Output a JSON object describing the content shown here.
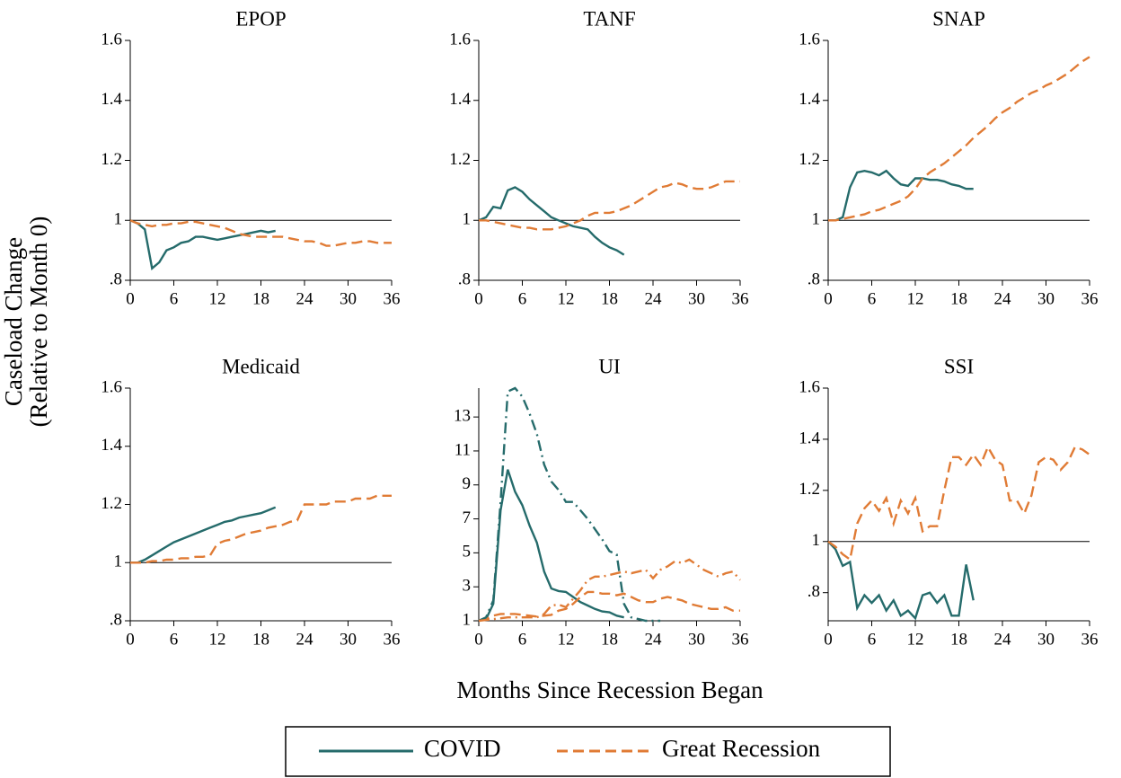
{
  "figure": {
    "ylabel": [
      "Caseload Change",
      "(Relative to Month 0)"
    ],
    "xlabel": "Months Since Recession Began"
  },
  "chart_data": [
    {
      "type": "line",
      "title": "EPOP",
      "x": [
        0,
        1,
        2,
        3,
        4,
        5,
        6,
        7,
        8,
        9,
        10,
        11,
        12,
        13,
        14,
        15,
        16,
        17,
        18,
        19,
        20,
        21,
        22,
        23,
        24,
        25,
        26,
        27,
        28,
        29,
        30,
        31,
        32,
        33,
        34,
        35,
        36
      ],
      "xlim": [
        0,
        36
      ],
      "xticks": [
        0,
        6,
        12,
        18,
        24,
        30,
        36
      ],
      "ylim": [
        0.8,
        1.6
      ],
      "yticks": [
        {
          "value": 0.8,
          "label": ".8"
        },
        1,
        1.2,
        1.4,
        1.6
      ],
      "hline": 1,
      "series": [
        {
          "name": "COVID",
          "color": "#256b6b",
          "dash": "solid",
          "values": [
            1,
            0.99,
            0.97,
            0.84,
            0.86,
            0.9,
            0.91,
            0.925,
            0.93,
            0.945,
            0.945,
            0.94,
            0.935,
            0.94,
            0.945,
            0.95,
            0.955,
            0.96,
            0.965,
            0.96,
            0.965,
            null,
            null,
            null,
            null,
            null,
            null,
            null,
            null,
            null,
            null,
            null,
            null,
            null,
            null,
            null,
            null
          ]
        },
        {
          "name": "Great Recession",
          "color": "#e07b35",
          "dash": "dashed",
          "values": [
            1,
            0.99,
            0.985,
            0.98,
            0.985,
            0.985,
            0.99,
            0.99,
            0.995,
            0.995,
            0.99,
            0.985,
            0.98,
            0.975,
            0.965,
            0.955,
            0.95,
            0.945,
            0.945,
            0.945,
            0.945,
            0.945,
            0.94,
            0.935,
            0.93,
            0.93,
            0.925,
            0.915,
            0.915,
            0.92,
            0.925,
            0.925,
            0.93,
            0.93,
            0.925,
            0.925,
            0.925
          ]
        }
      ]
    },
    {
      "type": "line",
      "title": "TANF",
      "x": [
        0,
        1,
        2,
        3,
        4,
        5,
        6,
        7,
        8,
        9,
        10,
        11,
        12,
        13,
        14,
        15,
        16,
        17,
        18,
        19,
        20,
        21,
        22,
        23,
        24,
        25,
        26,
        27,
        28,
        29,
        30,
        31,
        32,
        33,
        34,
        35,
        36
      ],
      "xlim": [
        0,
        36
      ],
      "xticks": [
        0,
        6,
        12,
        18,
        24,
        30,
        36
      ],
      "ylim": [
        0.8,
        1.6
      ],
      "yticks": [
        {
          "value": 0.8,
          "label": ".8"
        },
        1,
        1.2,
        1.4,
        1.6
      ],
      "hline": 1,
      "series": [
        {
          "name": "COVID",
          "color": "#256b6b",
          "dash": "solid",
          "values": [
            1,
            1.01,
            1.045,
            1.04,
            1.1,
            1.11,
            1.095,
            1.07,
            1.05,
            1.03,
            1.01,
            1.0,
            0.99,
            0.98,
            0.975,
            0.97,
            0.945,
            0.925,
            0.91,
            0.9,
            0.885,
            null,
            null,
            null,
            null,
            null,
            null,
            null,
            null,
            null,
            null,
            null,
            null,
            null,
            null,
            null,
            null
          ]
        },
        {
          "name": "Great Recession",
          "color": "#e07b35",
          "dash": "dashed",
          "values": [
            1,
            1,
            0.995,
            0.99,
            0.985,
            0.98,
            0.975,
            0.975,
            0.97,
            0.97,
            0.97,
            0.975,
            0.98,
            0.99,
            1.0,
            1.015,
            1.025,
            1.025,
            1.025,
            1.03,
            1.04,
            1.05,
            1.065,
            1.08,
            1.095,
            1.11,
            1.115,
            1.125,
            1.12,
            1.11,
            1.105,
            1.105,
            1.11,
            1.12,
            1.13,
            1.13,
            1.13
          ]
        }
      ]
    },
    {
      "type": "line",
      "title": "SNAP",
      "x": [
        0,
        1,
        2,
        3,
        4,
        5,
        6,
        7,
        8,
        9,
        10,
        11,
        12,
        13,
        14,
        15,
        16,
        17,
        18,
        19,
        20,
        21,
        22,
        23,
        24,
        25,
        26,
        27,
        28,
        29,
        30,
        31,
        32,
        33,
        34,
        35,
        36
      ],
      "xlim": [
        0,
        36
      ],
      "xticks": [
        0,
        6,
        12,
        18,
        24,
        30,
        36
      ],
      "ylim": [
        0.8,
        1.6
      ],
      "yticks": [
        {
          "value": 0.8,
          "label": ".8"
        },
        1,
        1.2,
        1.4,
        1.6
      ],
      "hline": 1,
      "series": [
        {
          "name": "COVID",
          "color": "#256b6b",
          "dash": "solid",
          "values": [
            1,
            1.0,
            1.01,
            1.11,
            1.16,
            1.165,
            1.16,
            1.15,
            1.165,
            1.14,
            1.12,
            1.115,
            1.14,
            1.14,
            1.135,
            1.135,
            1.13,
            1.12,
            1.115,
            1.105,
            1.105,
            null,
            null,
            null,
            null,
            null,
            null,
            null,
            null,
            null,
            null,
            null,
            null,
            null,
            null,
            null,
            null
          ]
        },
        {
          "name": "Great Recession",
          "color": "#e07b35",
          "dash": "dashed",
          "values": [
            1,
            1.0,
            1.005,
            1.01,
            1.015,
            1.02,
            1.03,
            1.035,
            1.045,
            1.055,
            1.065,
            1.08,
            1.105,
            1.14,
            1.16,
            1.175,
            1.19,
            1.21,
            1.23,
            1.25,
            1.275,
            1.295,
            1.315,
            1.34,
            1.36,
            1.375,
            1.395,
            1.41,
            1.425,
            1.435,
            1.45,
            1.46,
            1.475,
            1.49,
            1.51,
            1.53,
            1.545
          ]
        }
      ]
    },
    {
      "type": "line",
      "title": "Medicaid",
      "x": [
        0,
        1,
        2,
        3,
        4,
        5,
        6,
        7,
        8,
        9,
        10,
        11,
        12,
        13,
        14,
        15,
        16,
        17,
        18,
        19,
        20,
        21,
        22,
        23,
        24,
        25,
        26,
        27,
        28,
        29,
        30,
        31,
        32,
        33,
        34,
        35,
        36
      ],
      "xlim": [
        0,
        36
      ],
      "xticks": [
        0,
        6,
        12,
        18,
        24,
        30,
        36
      ],
      "ylim": [
        0.8,
        1.6
      ],
      "yticks": [
        {
          "value": 0.8,
          "label": ".8"
        },
        1,
        1.2,
        1.4,
        1.6
      ],
      "hline": 1,
      "series": [
        {
          "name": "COVID",
          "color": "#256b6b",
          "dash": "solid",
          "values": [
            1,
            1.0,
            1.01,
            1.025,
            1.04,
            1.055,
            1.07,
            1.08,
            1.09,
            1.1,
            1.11,
            1.12,
            1.13,
            1.14,
            1.145,
            1.155,
            1.16,
            1.165,
            1.17,
            1.18,
            1.19,
            null,
            null,
            null,
            null,
            null,
            null,
            null,
            null,
            null,
            null,
            null,
            null,
            null,
            null,
            null,
            null
          ]
        },
        {
          "name": "Great Recession",
          "color": "#e07b35",
          "dash": "dashed",
          "values": [
            1,
            1.0,
            1.0,
            1.005,
            1.005,
            1.01,
            1.01,
            1.015,
            1.015,
            1.02,
            1.02,
            1.025,
            1.065,
            1.075,
            1.08,
            1.09,
            1.1,
            1.105,
            1.11,
            1.12,
            1.125,
            1.13,
            1.14,
            1.145,
            1.2,
            1.2,
            1.2,
            1.2,
            1.21,
            1.21,
            1.21,
            1.22,
            1.22,
            1.22,
            1.23,
            1.23,
            1.23
          ]
        }
      ]
    },
    {
      "type": "line",
      "title": "UI",
      "x": [
        0,
        1,
        2,
        3,
        4,
        5,
        6,
        7,
        8,
        9,
        10,
        11,
        12,
        13,
        14,
        15,
        16,
        17,
        18,
        19,
        20,
        21,
        22,
        23,
        24,
        25,
        26,
        27,
        28,
        29,
        30,
        31,
        32,
        33,
        34,
        35,
        36
      ],
      "xlim": [
        0,
        36
      ],
      "xticks": [
        0,
        6,
        12,
        18,
        24,
        30,
        36
      ],
      "ylim": [
        1,
        14.7
      ],
      "yticks": [
        1,
        3,
        5,
        7,
        9,
        11,
        13
      ],
      "hline": 1,
      "series": [
        {
          "name": "COVID",
          "color": "#256b6b",
          "dash": "solid",
          "values": [
            1,
            1.1,
            2,
            7.5,
            9.9,
            8.6,
            7.8,
            6.6,
            5.6,
            3.9,
            2.9,
            2.75,
            2.7,
            2.4,
            2.1,
            1.9,
            1.7,
            1.55,
            1.5,
            1.3,
            1.2,
            null,
            null,
            null,
            null,
            null,
            null,
            null,
            null,
            null,
            null,
            null,
            null,
            null,
            null,
            null,
            null
          ]
        },
        {
          "name": "Great Recession",
          "color": "#e07b35",
          "dash": "dashed",
          "values": [
            1,
            1.1,
            1.3,
            1.4,
            1.4,
            1.4,
            1.35,
            1.3,
            1.25,
            1.3,
            1.35,
            1.6,
            1.7,
            2.0,
            2.4,
            2.7,
            2.7,
            2.6,
            2.6,
            2.5,
            2.6,
            2.4,
            2.2,
            2.1,
            2.1,
            2.3,
            2.4,
            2.3,
            2.2,
            2.0,
            1.9,
            1.8,
            1.7,
            1.7,
            1.8,
            1.6,
            1.6
          ]
        },
        {
          "color": "#256b6b",
          "dash": "dashdot",
          "values": [
            1,
            1.2,
            2.2,
            8,
            14.5,
            14.7,
            14.2,
            13.2,
            12,
            10.2,
            9.2,
            8.7,
            8,
            8,
            7.5,
            7,
            6.4,
            5.8,
            5.1,
            4.9,
            2,
            1.2,
            1.1,
            1.0,
            1.0,
            1.0,
            null,
            null,
            null,
            null,
            null,
            null,
            null,
            null,
            null,
            null,
            null
          ]
        },
        {
          "color": "#e07b35",
          "dash": "dashdot",
          "values": [
            1,
            1.05,
            1.1,
            1.15,
            1.2,
            1.2,
            1.2,
            1.2,
            1.2,
            1.4,
            1.9,
            1.95,
            1.8,
            2.3,
            2.8,
            3.4,
            3.6,
            3.6,
            3.7,
            3.8,
            3.9,
            3.8,
            3.9,
            4.0,
            3.5,
            4.0,
            4.2,
            4.5,
            4.4,
            4.6,
            4.3,
            4.0,
            3.8,
            3.6,
            3.8,
            3.9,
            3.4
          ]
        }
      ]
    },
    {
      "type": "line",
      "title": "SSI",
      "x": [
        0,
        1,
        2,
        3,
        4,
        5,
        6,
        7,
        8,
        9,
        10,
        11,
        12,
        13,
        14,
        15,
        16,
        17,
        18,
        19,
        20,
        21,
        22,
        23,
        24,
        25,
        26,
        27,
        28,
        29,
        30,
        31,
        32,
        33,
        34,
        35,
        36
      ],
      "xlim": [
        0,
        36
      ],
      "xticks": [
        0,
        6,
        12,
        18,
        24,
        30,
        36
      ],
      "ylim": [
        0.69,
        1.6
      ],
      "yticks": [
        {
          "value": 0.8,
          "label": ".8"
        },
        1,
        1.2,
        1.4,
        1.6
      ],
      "hline": 1,
      "series": [
        {
          "name": "COVID",
          "color": "#256b6b",
          "dash": "solid",
          "values": [
            1,
            0.97,
            0.905,
            0.92,
            0.74,
            0.79,
            0.76,
            0.79,
            0.73,
            0.77,
            0.71,
            0.73,
            0.7,
            0.79,
            0.8,
            0.76,
            0.79,
            0.71,
            0.71,
            0.91,
            0.77,
            null,
            null,
            null,
            null,
            null,
            null,
            null,
            null,
            null,
            null,
            null,
            null,
            null,
            null,
            null,
            null
          ]
        },
        {
          "name": "Great Recession",
          "color": "#e07b35",
          "dash": "dashed",
          "values": [
            1,
            0.98,
            0.95,
            0.93,
            1.07,
            1.13,
            1.16,
            1.12,
            1.17,
            1.07,
            1.16,
            1.11,
            1.17,
            1.04,
            1.06,
            1.06,
            1.2,
            1.33,
            1.33,
            1.3,
            1.34,
            1.3,
            1.37,
            1.32,
            1.3,
            1.16,
            1.16,
            1.11,
            1.18,
            1.31,
            1.33,
            1.32,
            1.28,
            1.31,
            1.37,
            1.36,
            1.34
          ]
        }
      ]
    }
  ]
}
